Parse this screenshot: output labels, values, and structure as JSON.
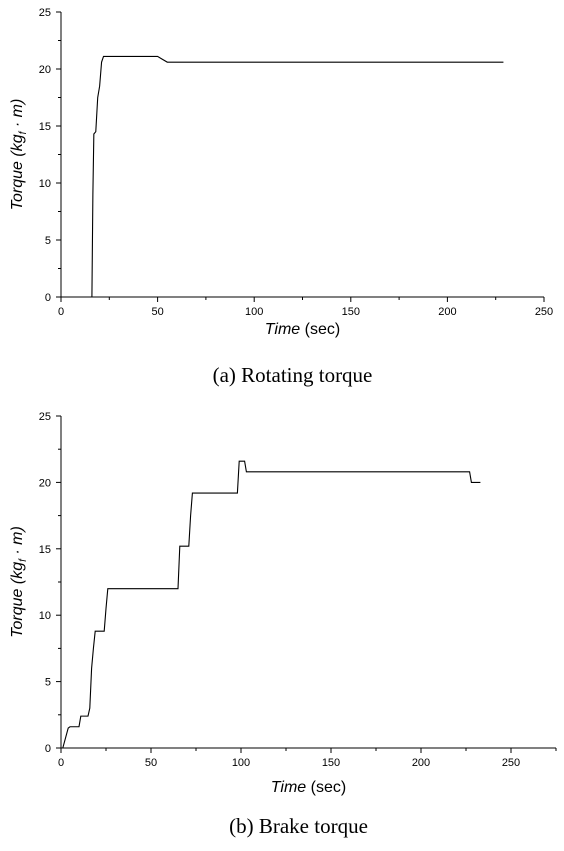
{
  "chart_data": [
    {
      "type": "line",
      "caption": "(a) Rotating torque",
      "xlabel_italic": "Time",
      "xlabel_unit": "(sec)",
      "ylabel_italic_pre": "Torque (kg",
      "ylabel_sub": "f",
      "ylabel_italic_post": " · m)",
      "xlim": [
        0,
        250
      ],
      "ylim": [
        0,
        25
      ],
      "xticks": [
        0,
        50,
        100,
        150,
        200,
        250
      ],
      "yticks": [
        0,
        5,
        10,
        15,
        20,
        25
      ],
      "grid": false,
      "series": [
        {
          "x": [
            16,
            16.5,
            17,
            18,
            19,
            20,
            21,
            22,
            50,
            52,
            55,
            100,
            229
          ],
          "y": [
            0,
            9,
            14.3,
            14.5,
            17.5,
            18.5,
            20.6,
            21.1,
            21.1,
            20.9,
            20.6,
            20.6,
            20.6
          ]
        }
      ]
    },
    {
      "type": "line",
      "caption": "(b) Brake torque",
      "xlabel_italic": "Time",
      "xlabel_unit": "(sec)",
      "ylabel_italic_pre": "Torque (kg",
      "ylabel_sub": "f",
      "ylabel_italic_post": " · m)",
      "xlim": [
        0,
        275
      ],
      "ylim": [
        0,
        25
      ],
      "xticks": [
        0,
        50,
        100,
        150,
        200,
        250
      ],
      "yticks": [
        0,
        5,
        10,
        15,
        20,
        25
      ],
      "grid": false,
      "series": [
        {
          "x": [
            1,
            4,
            5,
            10,
            11,
            15,
            16,
            17,
            18,
            19,
            24,
            25,
            26,
            65,
            66,
            67,
            71,
            72,
            73,
            98,
            99,
            102,
            103,
            227,
            228,
            233
          ],
          "y": [
            0,
            1.5,
            1.6,
            1.6,
            2.4,
            2.4,
            3.0,
            6.0,
            7.5,
            8.8,
            8.8,
            10.5,
            12.0,
            12.0,
            15.2,
            15.2,
            15.2,
            17.5,
            19.2,
            19.2,
            21.6,
            21.6,
            20.8,
            20.8,
            20.0,
            20.0
          ]
        }
      ]
    }
  ]
}
